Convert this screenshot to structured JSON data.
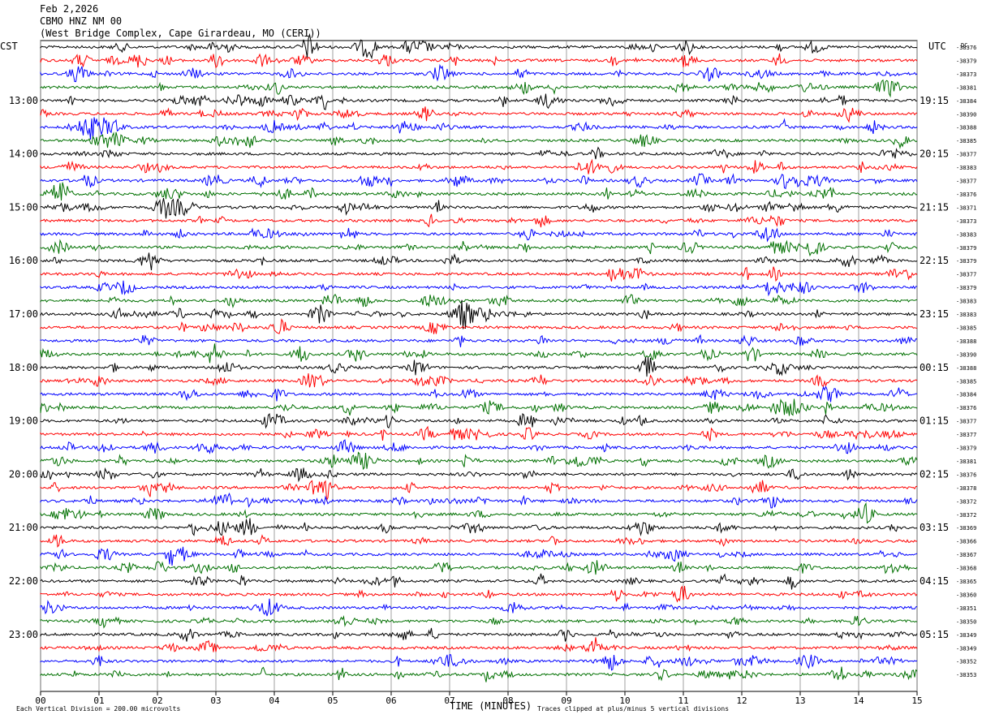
{
  "header": {
    "date": "Feb 2,2026",
    "station": "CBMO HNZ NM 00",
    "location": "(West Bridge Complex, Cape Girardeau, MO (CERI))",
    "left_tz": "CST",
    "right_tz": "UTC",
    "dc_label": "DC"
  },
  "chart_data": {
    "type": "line",
    "title": "CBMO HNZ NM 00",
    "xlabel": "TIME (MINUTES)",
    "x_ticks": [
      "00",
      "01",
      "02",
      "03",
      "04",
      "05",
      "06",
      "07",
      "08",
      "09",
      "10",
      "11",
      "12",
      "13",
      "14",
      "15"
    ],
    "xlim": [
      0,
      15
    ],
    "trace_colors": [
      "#000000",
      "#ff0000",
      "#0000ff",
      "#007000"
    ],
    "left_hour_labels": [
      "13:00",
      "14:00",
      "15:00",
      "16:00",
      "17:00",
      "18:00",
      "19:00",
      "20:00",
      "21:00",
      "22:00",
      "23:00"
    ],
    "right_hour_labels": [
      "19:15",
      "20:15",
      "21:15",
      "22:15",
      "23:15",
      "00:15",
      "01:15",
      "02:15",
      "03:15",
      "04:15",
      "05:15"
    ],
    "dc_offsets": [
      "-38376",
      "-38379",
      "-38373",
      "-38381",
      "-38384",
      "-38390",
      "-38388",
      "-38385",
      "-38377",
      "-38383",
      "-38377",
      "-38376",
      "-38371",
      "-38373",
      "-38383",
      "-38379",
      "-38379",
      "-38377",
      "-38379",
      "-38383",
      "-38383",
      "-38385",
      "-38388",
      "-38390",
      "-38388",
      "-38385",
      "-38384",
      "-38376",
      "-38377",
      "-38377",
      "-38379",
      "-38381",
      "-38376",
      "-38378",
      "-38372",
      "-38372",
      "-38369",
      "-38366",
      "-38367",
      "-38368",
      "-38365",
      "-38360",
      "-38351",
      "-38350",
      "-38349",
      "-38349",
      "-38352",
      "-38353"
    ],
    "vertical_division": "Each Vertical Division =  200.00 microvolts",
    "clip_note": "Traces clipped at plus/minus 5 vertical divisions"
  }
}
